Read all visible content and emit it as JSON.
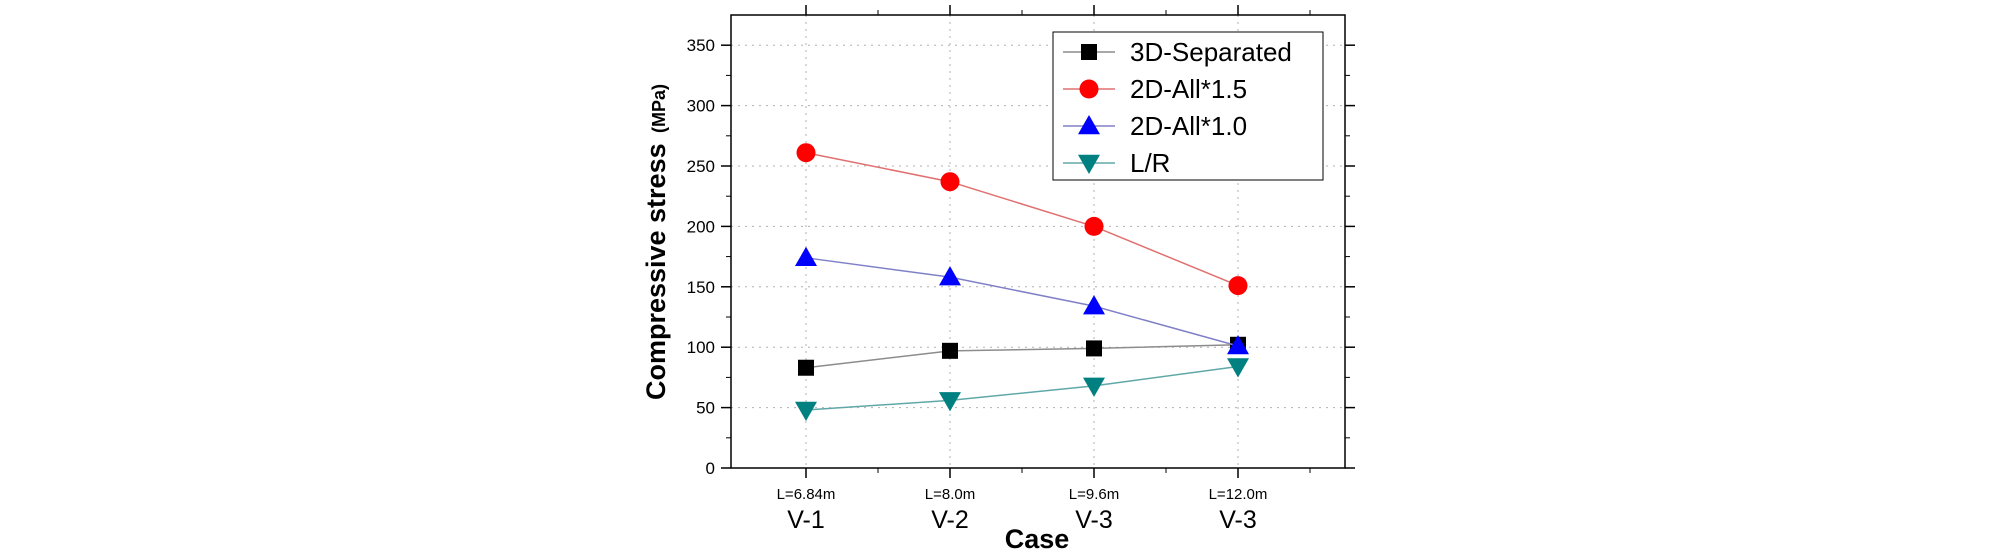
{
  "chart_data": {
    "type": "line",
    "categories": [
      "V-1",
      "V-2",
      "V-3",
      "V-3"
    ],
    "category_sublabels": [
      "L=6.84m",
      "L=8.0m",
      "L=9.6m",
      "L=12.0m"
    ],
    "xlabel": "Case",
    "ylabel": "Compressive stress",
    "ylabel_unit": "(MPa)",
    "ylim": [
      0,
      375
    ],
    "yticks": [
      0,
      50,
      100,
      150,
      200,
      250,
      300,
      350
    ],
    "grid": true,
    "legend_position": "top-right",
    "series": [
      {
        "name": "3D-Separated",
        "values": [
          83,
          97,
          99,
          102
        ],
        "marker": "square",
        "line_color": "#8c8c8c",
        "marker_color": "#000000"
      },
      {
        "name": "2D-All*1.5",
        "values": [
          261,
          237,
          200,
          151
        ],
        "marker": "circle",
        "line_color": "#e07070",
        "marker_color": "#ff0000"
      },
      {
        "name": "2D-All*1.0",
        "values": [
          174,
          158,
          134,
          101
        ],
        "marker": "triangle-up",
        "line_color": "#8080c8",
        "marker_color": "#0000ff"
      },
      {
        "name": "L/R",
        "values": [
          48,
          56,
          68,
          84
        ],
        "marker": "triangle-down",
        "line_color": "#60a8a8",
        "marker_color": "#008080"
      }
    ]
  }
}
